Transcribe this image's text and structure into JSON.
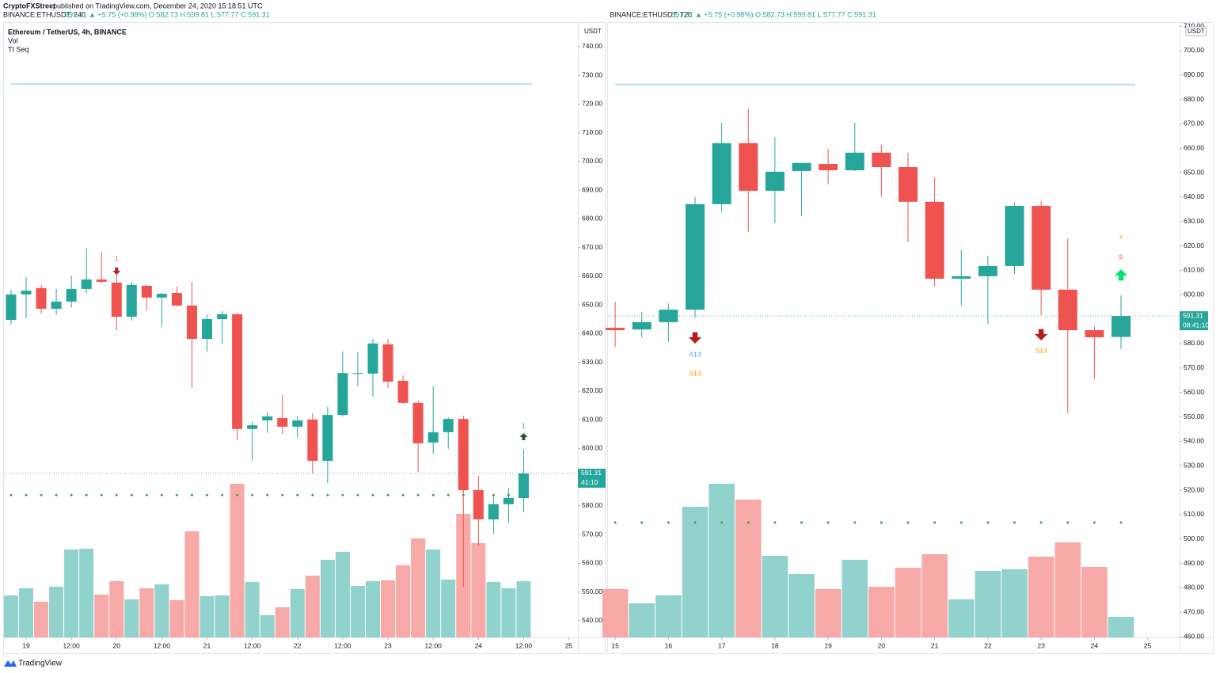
{
  "page": {
    "author": "CryptoFXStreet",
    "published": "published on TradingView.com, December 24, 2020 15:18:51 UTC",
    "footer": "TradingView"
  },
  "chart_data": [
    {
      "type": "candlestick",
      "symbol": "BINANCE:ETHUSDT, 240",
      "quote": "591.31 ▲ +5.75 (+0.98%) O:582.73 H:599.81 L:577.77 C:591.31",
      "legend": [
        "Ethereum / TetherUS, 4h, BINANCE",
        "Vol",
        "TI Seq"
      ],
      "unit": "USDT",
      "open": [
        644.8,
        653.7,
        655.9,
        648.7,
        651.2,
        655.6,
        658.9,
        657.8,
        645.9,
        656.7,
        652.6,
        654.2,
        649.8,
        638.2,
        645.1,
        646.8,
        606.8,
        609.8,
        610.6,
        607.6,
        610.1,
        595.7,
        611.7,
        626.1,
        626.1,
        636.3,
        623.6,
        615.9,
        602.1,
        605.7,
        610.3,
        585.5,
        575.3,
        580.6,
        582.73
      ],
      "high": [
        655.3,
        659.7,
        657.0,
        655.6,
        660.3,
        669.9,
        668.5,
        663.3,
        658.1,
        657.0,
        654.2,
        656.4,
        658.1,
        646.8,
        647.9,
        647.3,
        609.5,
        612.8,
        618.6,
        611.2,
        612.3,
        614.5,
        633.8,
        633.5,
        638.2,
        638.2,
        625.5,
        616.7,
        621.7,
        610.9,
        611.4,
        590.5,
        583.6,
        586.1,
        599.81
      ],
      "low": [
        643.2,
        645.4,
        647.0,
        646.5,
        649.2,
        654.2,
        657.5,
        641.2,
        644.6,
        648.1,
        642.3,
        649.5,
        621.1,
        633.8,
        636.6,
        602.9,
        595.7,
        605.4,
        605.1,
        603.7,
        591.3,
        588.0,
        611.2,
        621.7,
        618.1,
        621.1,
        615.6,
        591.9,
        598.2,
        599.9,
        551.6,
        566.2,
        570.3,
        574.1,
        577.77
      ],
      "close": [
        653.7,
        655.0,
        648.7,
        651.2,
        655.6,
        658.9,
        658.1,
        645.9,
        657.0,
        652.6,
        653.9,
        649.8,
        638.2,
        645.1,
        646.8,
        606.8,
        608.1,
        611.2,
        607.6,
        609.8,
        595.7,
        611.7,
        626.3,
        626.3,
        636.6,
        623.3,
        615.9,
        601.8,
        605.7,
        610.3,
        585.5,
        575.3,
        580.6,
        582.8,
        591.31
      ],
      "volume": [
        53,
        62,
        45,
        64,
        111,
        112,
        54,
        71,
        48,
        62,
        67,
        47,
        134,
        52,
        53,
        194,
        70,
        28,
        38,
        61,
        78,
        98,
        108,
        65,
        71,
        72,
        91,
        125,
        111,
        73,
        156,
        119,
        70,
        62,
        71
      ],
      "up_color": "#26a69a",
      "down_color": "#ef5350",
      "volume_up_color": "#92d2cc",
      "volume_down_color": "#f7a9a7",
      "support": 583.8,
      "support_color": "#43a047",
      "resistance": 727.0,
      "resistance_color": "#b3dff0",
      "last_price": 591.31,
      "countdown": "41:10",
      "annotations": [
        {
          "text": "1",
          "color": "#ef5350"
        },
        {
          "text": "1",
          "color": "#26a69a"
        }
      ],
      "xlim": [
        -0.47,
        37.6
      ],
      "xticks": [
        {
          "value": 1,
          "label": "19"
        },
        {
          "value": 4,
          "label": "12:00"
        },
        {
          "value": 7,
          "label": "20"
        },
        {
          "value": 10,
          "label": "12:00"
        },
        {
          "value": 13,
          "label": "21"
        },
        {
          "value": 16,
          "label": "12:00"
        },
        {
          "value": 19,
          "label": "22"
        },
        {
          "value": 22,
          "label": "12:00"
        },
        {
          "value": 25,
          "label": "23"
        },
        {
          "value": 28,
          "label": "12:00"
        },
        {
          "value": 31,
          "label": "24"
        },
        {
          "value": 34,
          "label": "12:00"
        },
        {
          "value": 37,
          "label": "25"
        }
      ],
      "ylim": [
        534.2,
        748
      ],
      "yticks": [
        {
          "value": 540,
          "label": "540.00"
        },
        {
          "value": 550,
          "label": "550.00"
        },
        {
          "value": 560,
          "label": "560.00"
        },
        {
          "value": 570,
          "label": "570.00"
        },
        {
          "value": 580,
          "label": "580.00"
        },
        {
          "value": 590,
          "label": "590.00"
        },
        {
          "value": 600,
          "label": "600.00"
        },
        {
          "value": 610,
          "label": "610.00"
        },
        {
          "value": 620,
          "label": "620.00"
        },
        {
          "value": 630,
          "label": "630.00"
        },
        {
          "value": 640,
          "label": "640.00"
        },
        {
          "value": 650,
          "label": "650.00"
        },
        {
          "value": 660,
          "label": "660.00"
        },
        {
          "value": 670,
          "label": "670.00"
        },
        {
          "value": 680,
          "label": "680.00"
        },
        {
          "value": 690,
          "label": "690.00"
        },
        {
          "value": 700,
          "label": "700.00"
        },
        {
          "value": 710,
          "label": "710.00"
        },
        {
          "value": 720,
          "label": "720.00"
        },
        {
          "value": 730,
          "label": "730.00"
        },
        {
          "value": 740,
          "label": "740.00"
        }
      ]
    },
    {
      "type": "candlestick",
      "symbol": "BINANCE:ETHUSDT, 720",
      "quote": "591.31 ▲ +5.75 (+0.98%) O:582.73 H:599.81 L:577.77 C:591.31",
      "unit": "USDT",
      "open": [
        586.5,
        585.8,
        588.8,
        593.9,
        637.1,
        662.1,
        642.6,
        650.7,
        653.6,
        651.0,
        658.2,
        652.3,
        638.1,
        606.6,
        607.6,
        611.8,
        636.4,
        602.1,
        585.5,
        582.73
      ],
      "high": [
        597.2,
        593.0,
        596.5,
        640.0,
        670.5,
        676.3,
        664.6,
        654.0,
        659.8,
        670.5,
        661.4,
        658.2,
        648.1,
        618.3,
        616.0,
        637.7,
        638.4,
        623.1,
        587.1,
        599.81
      ],
      "low": [
        578.7,
        582.6,
        580.7,
        590.7,
        633.8,
        625.7,
        629.3,
        632.2,
        645.2,
        650.7,
        640.3,
        621.5,
        603.4,
        595.6,
        588.1,
        608.5,
        591.7,
        551.5,
        565.4,
        577.77
      ],
      "close": [
        585.5,
        588.8,
        593.9,
        637.1,
        662.1,
        642.6,
        650.4,
        654.0,
        651.0,
        658.2,
        652.3,
        638.1,
        606.6,
        607.6,
        611.8,
        636.4,
        602.1,
        585.5,
        582.6,
        591.31
      ],
      "volume": [
        61,
        43,
        53,
        165,
        194,
        174,
        103,
        80,
        61,
        98,
        64,
        88,
        105,
        48,
        84,
        86,
        102,
        120,
        89,
        26
      ],
      "up_color": "#26a69a",
      "down_color": "#ef5350",
      "volume_up_color": "#92d2cc",
      "volume_down_color": "#f7a9a7",
      "support": 506.7,
      "support_color": "#43a047",
      "resistance": 686.1,
      "resistance_color": "#b3dff0",
      "last_price": 591.31,
      "countdown": "08:41:10",
      "annotations": [
        {
          "text": "A13",
          "color": "#42a5f5"
        },
        {
          "text": "S13",
          "color": "#ff9800"
        },
        {
          "text": "S13",
          "color": "#ff9800"
        },
        {
          "text": "9",
          "color": "#ef5350"
        },
        {
          "text": "8",
          "color": "#ff9800"
        }
      ],
      "xlim": [
        -0.27,
        21.2
      ],
      "xticks": [
        {
          "value": 0,
          "label": "15"
        },
        {
          "value": 2,
          "label": "16"
        },
        {
          "value": 4,
          "label": "17"
        },
        {
          "value": 6,
          "label": "18"
        },
        {
          "value": 8,
          "label": "19"
        },
        {
          "value": 10,
          "label": "20"
        },
        {
          "value": 12,
          "label": "21"
        },
        {
          "value": 14,
          "label": "22"
        },
        {
          "value": 16,
          "label": "23"
        },
        {
          "value": 18,
          "label": "24"
        },
        {
          "value": 20,
          "label": "25"
        }
      ],
      "ylim": [
        459.7,
        711
      ],
      "yticks": [
        {
          "value": 460,
          "label": "460.00"
        },
        {
          "value": 470,
          "label": "470.00"
        },
        {
          "value": 480,
          "label": "480.00"
        },
        {
          "value": 490,
          "label": "490.00"
        },
        {
          "value": 500,
          "label": "500.00"
        },
        {
          "value": 510,
          "label": "510.00"
        },
        {
          "value": 520,
          "label": "520.00"
        },
        {
          "value": 530,
          "label": "530.00"
        },
        {
          "value": 540,
          "label": "540.00"
        },
        {
          "value": 550,
          "label": "550.00"
        },
        {
          "value": 560,
          "label": "560.00"
        },
        {
          "value": 570,
          "label": "570.00"
        },
        {
          "value": 580,
          "label": "580.00"
        },
        {
          "value": 590,
          "label": "590.00"
        },
        {
          "value": 600,
          "label": "600.00"
        },
        {
          "value": 610,
          "label": "610.00"
        },
        {
          "value": 620,
          "label": "620.00"
        },
        {
          "value": 630,
          "label": "630.00"
        },
        {
          "value": 640,
          "label": "640.00"
        },
        {
          "value": 650,
          "label": "650.00"
        },
        {
          "value": 660,
          "label": "660.00"
        },
        {
          "value": 670,
          "label": "670.00"
        },
        {
          "value": 680,
          "label": "680.00"
        },
        {
          "value": 690,
          "label": "690.00"
        },
        {
          "value": 700,
          "label": "700.00"
        },
        {
          "value": 710,
          "label": "710.00"
        }
      ]
    }
  ]
}
